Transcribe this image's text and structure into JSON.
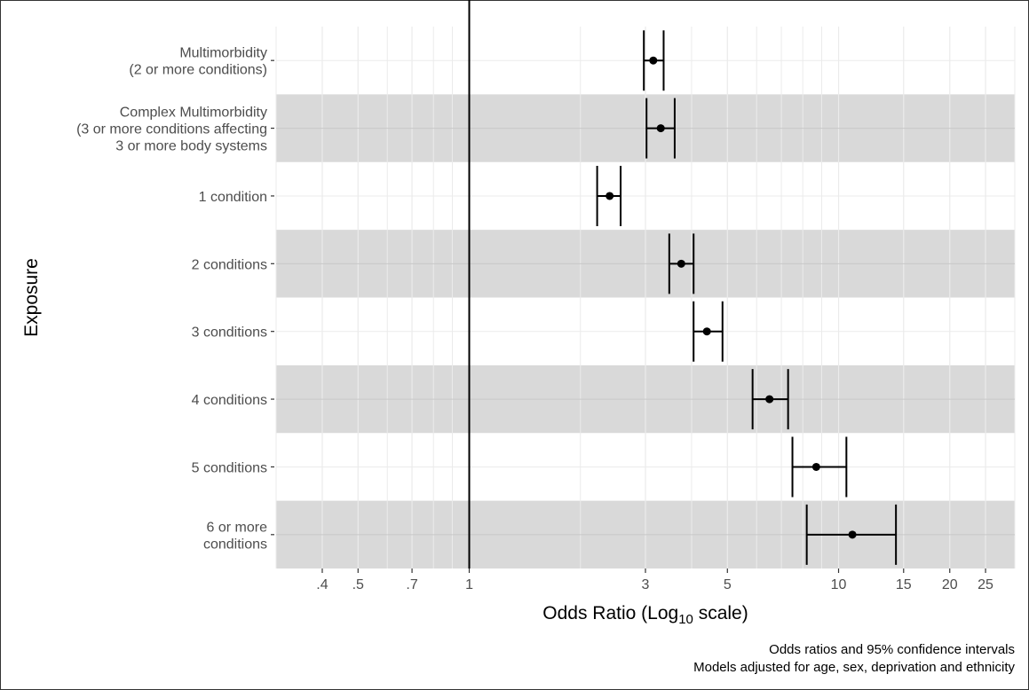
{
  "chart_data": {
    "type": "scatter",
    "subtype": "forest-plot",
    "xlabel_main": "Odds Ratio (Log",
    "xlabel_sub": "10",
    "xlabel_tail": " scale)",
    "ylabel": "Exposure",
    "x_scale": "log10",
    "xlim": [
      0.3,
      30
    ],
    "x_ticks": [
      {
        "value": 0.4,
        "label": ".4"
      },
      {
        "value": 0.5,
        "label": ".5"
      },
      {
        "value": 0.7,
        "label": ".7"
      },
      {
        "value": 1,
        "label": "1"
      },
      {
        "value": 3,
        "label": "3"
      },
      {
        "value": 5,
        "label": "5"
      },
      {
        "value": 10,
        "label": "10"
      },
      {
        "value": 15,
        "label": "15"
      },
      {
        "value": 20,
        "label": "20"
      },
      {
        "value": 25,
        "label": "25"
      }
    ],
    "x_minor_gridlines": [
      0.3,
      0.6,
      0.8,
      0.9,
      2,
      4,
      6,
      7,
      8,
      9,
      30
    ],
    "reference_line": 1,
    "grid": true,
    "band_color": "#d9d9d9",
    "point_color": "#000000",
    "rows": [
      {
        "label": [
          "Multimorbidity",
          "(2 or more conditions)"
        ],
        "or": 3.15,
        "lower": 2.97,
        "upper": 3.36,
        "shaded": false
      },
      {
        "label": [
          "Complex Multimorbidity",
          "(3 or more conditions affecting",
          "3 or more body systems"
        ],
        "or": 3.3,
        "lower": 3.02,
        "upper": 3.6,
        "shaded": true
      },
      {
        "label": [
          "1 condition"
        ],
        "or": 2.4,
        "lower": 2.22,
        "upper": 2.57,
        "shaded": false
      },
      {
        "label": [
          "2 conditions"
        ],
        "or": 3.75,
        "lower": 3.48,
        "upper": 4.05,
        "shaded": true
      },
      {
        "label": [
          "3 conditions"
        ],
        "or": 4.4,
        "lower": 4.05,
        "upper": 4.85,
        "shaded": false
      },
      {
        "label": [
          "4 conditions"
        ],
        "or": 6.5,
        "lower": 5.85,
        "upper": 7.3,
        "shaded": true
      },
      {
        "label": [
          "5 conditions"
        ],
        "or": 8.7,
        "lower": 7.5,
        "upper": 10.5,
        "shaded": false
      },
      {
        "label": [
          "6 or more",
          "conditions"
        ],
        "or": 10.9,
        "lower": 8.2,
        "upper": 14.3,
        "shaded": true
      }
    ],
    "caption": [
      "Odds ratios and 95% confidence intervals",
      "Models adjusted for age, sex, deprivation and ethnicity"
    ]
  }
}
